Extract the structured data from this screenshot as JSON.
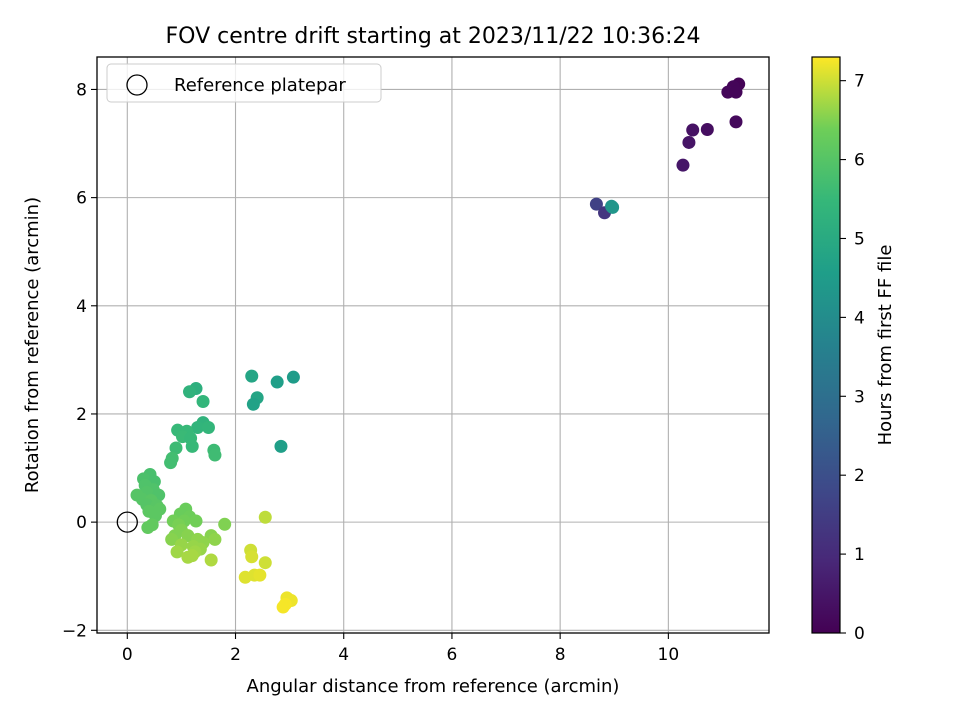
{
  "chart_data": {
    "type": "scatter",
    "title": "FOV centre drift starting at 2023/11/22 10:36:24",
    "xlabel": "Angular distance from reference (arcmin)",
    "ylabel": "Rotation from reference (arcmin)",
    "xlim": [
      -0.56,
      11.86
    ],
    "ylim": [
      -2.05,
      8.6
    ],
    "xticks": [
      0,
      2,
      4,
      6,
      8,
      10
    ],
    "yticks": [
      -2,
      0,
      2,
      4,
      6,
      8
    ],
    "grid": true,
    "legend": {
      "placement": "top-left",
      "entries": [
        "Reference platepar"
      ]
    },
    "reference_point": {
      "x": 0,
      "y": 0,
      "label": "Reference platepar"
    },
    "colorbar": {
      "label": "Hours from first FF file",
      "colormap": "viridis",
      "range": [
        0,
        7.3
      ],
      "ticks": [
        0,
        1,
        2,
        3,
        4,
        5,
        6,
        7
      ]
    },
    "series": [
      {
        "points": [
          {
            "x": 11.3,
            "y": 8.1,
            "c": 0.05
          },
          {
            "x": 11.2,
            "y": 8.05,
            "c": 0.1
          },
          {
            "x": 11.1,
            "y": 7.95,
            "c": 0.15
          },
          {
            "x": 11.25,
            "y": 7.95,
            "c": 0.1
          },
          {
            "x": 11.25,
            "y": 7.4,
            "c": 0.2
          },
          {
            "x": 10.72,
            "y": 7.26,
            "c": 0.3
          },
          {
            "x": 10.45,
            "y": 7.25,
            "c": 0.4
          },
          {
            "x": 10.38,
            "y": 7.02,
            "c": 0.45
          },
          {
            "x": 10.27,
            "y": 6.6,
            "c": 0.5
          },
          {
            "x": 8.67,
            "y": 5.88,
            "c": 1.6
          },
          {
            "x": 8.82,
            "y": 5.72,
            "c": 1.3
          },
          {
            "x": 8.95,
            "y": 5.84,
            "c": 4.2
          },
          {
            "x": 8.97,
            "y": 5.82,
            "c": 4.3
          },
          {
            "x": 2.3,
            "y": 2.7,
            "c": 4.8
          },
          {
            "x": 2.77,
            "y": 2.59,
            "c": 4.6
          },
          {
            "x": 3.07,
            "y": 2.68,
            "c": 4.5
          },
          {
            "x": 2.4,
            "y": 2.3,
            "c": 4.8
          },
          {
            "x": 2.33,
            "y": 2.18,
            "c": 4.7
          },
          {
            "x": 2.84,
            "y": 1.4,
            "c": 4.6
          },
          {
            "x": 1.27,
            "y": 2.47,
            "c": 5.2
          },
          {
            "x": 1.15,
            "y": 2.41,
            "c": 5.3
          },
          {
            "x": 1.4,
            "y": 2.23,
            "c": 5.4
          },
          {
            "x": 1.4,
            "y": 1.84,
            "c": 5.3
          },
          {
            "x": 1.3,
            "y": 1.75,
            "c": 5.35
          },
          {
            "x": 1.5,
            "y": 1.75,
            "c": 5.4
          },
          {
            "x": 0.93,
            "y": 1.7,
            "c": 5.5
          },
          {
            "x": 1.1,
            "y": 1.68,
            "c": 5.5
          },
          {
            "x": 1.02,
            "y": 1.58,
            "c": 5.55
          },
          {
            "x": 1.17,
            "y": 1.55,
            "c": 5.5
          },
          {
            "x": 1.2,
            "y": 1.4,
            "c": 5.5
          },
          {
            "x": 0.9,
            "y": 1.37,
            "c": 5.6
          },
          {
            "x": 1.6,
            "y": 1.33,
            "c": 5.6
          },
          {
            "x": 1.62,
            "y": 1.24,
            "c": 5.65
          },
          {
            "x": 0.83,
            "y": 1.18,
            "c": 5.7
          },
          {
            "x": 0.8,
            "y": 1.1,
            "c": 5.7
          },
          {
            "x": 0.42,
            "y": 0.88,
            "c": 5.8
          },
          {
            "x": 0.3,
            "y": 0.8,
            "c": 5.85
          },
          {
            "x": 0.5,
            "y": 0.75,
            "c": 5.8
          },
          {
            "x": 0.33,
            "y": 0.68,
            "c": 5.9
          },
          {
            "x": 0.48,
            "y": 0.6,
            "c": 5.9
          },
          {
            "x": 0.36,
            "y": 0.55,
            "c": 5.95
          },
          {
            "x": 0.18,
            "y": 0.5,
            "c": 6.0
          },
          {
            "x": 0.58,
            "y": 0.5,
            "c": 5.9
          },
          {
            "x": 0.28,
            "y": 0.42,
            "c": 6.0
          },
          {
            "x": 0.44,
            "y": 0.4,
            "c": 6.05
          },
          {
            "x": 0.36,
            "y": 0.32,
            "c": 6.0
          },
          {
            "x": 0.55,
            "y": 0.3,
            "c": 6.05
          },
          {
            "x": 0.6,
            "y": 0.24,
            "c": 6.1
          },
          {
            "x": 0.4,
            "y": 0.2,
            "c": 6.1
          },
          {
            "x": 0.52,
            "y": 0.12,
            "c": 6.1
          },
          {
            "x": 0.46,
            "y": -0.05,
            "c": 6.2
          },
          {
            "x": 0.38,
            "y": -0.1,
            "c": 6.2
          },
          {
            "x": 1.08,
            "y": 0.24,
            "c": 6.3
          },
          {
            "x": 0.98,
            "y": 0.15,
            "c": 6.3
          },
          {
            "x": 1.15,
            "y": 0.1,
            "c": 6.35
          },
          {
            "x": 0.85,
            "y": 0.02,
            "c": 6.4
          },
          {
            "x": 1.05,
            "y": 0.02,
            "c": 6.4
          },
          {
            "x": 1.27,
            "y": 0.02,
            "c": 6.4
          },
          {
            "x": 0.95,
            "y": -0.05,
            "c": 6.45
          },
          {
            "x": 1.8,
            "y": -0.04,
            "c": 6.5
          },
          {
            "x": 1.0,
            "y": -0.15,
            "c": 6.5
          },
          {
            "x": 0.88,
            "y": -0.25,
            "c": 6.5
          },
          {
            "x": 1.12,
            "y": -0.25,
            "c": 6.55
          },
          {
            "x": 1.55,
            "y": -0.25,
            "c": 6.55
          },
          {
            "x": 0.82,
            "y": -0.32,
            "c": 6.55
          },
          {
            "x": 1.3,
            "y": -0.32,
            "c": 6.6
          },
          {
            "x": 1.62,
            "y": -0.32,
            "c": 6.6
          },
          {
            "x": 1.4,
            "y": -0.38,
            "c": 6.6
          },
          {
            "x": 1.0,
            "y": -0.42,
            "c": 6.65
          },
          {
            "x": 1.22,
            "y": -0.45,
            "c": 6.65
          },
          {
            "x": 1.35,
            "y": -0.5,
            "c": 6.65
          },
          {
            "x": 0.92,
            "y": -0.55,
            "c": 6.7
          },
          {
            "x": 1.25,
            "y": -0.55,
            "c": 6.7
          },
          {
            "x": 1.12,
            "y": -0.65,
            "c": 6.75
          },
          {
            "x": 1.2,
            "y": -0.62,
            "c": 6.75
          },
          {
            "x": 1.55,
            "y": -0.7,
            "c": 6.8
          },
          {
            "x": 2.55,
            "y": 0.09,
            "c": 6.9
          },
          {
            "x": 2.28,
            "y": -0.52,
            "c": 7.0
          },
          {
            "x": 2.3,
            "y": -0.64,
            "c": 7.05
          },
          {
            "x": 2.55,
            "y": -0.75,
            "c": 7.0
          },
          {
            "x": 2.18,
            "y": -1.02,
            "c": 7.1
          },
          {
            "x": 2.35,
            "y": -0.98,
            "c": 7.1
          },
          {
            "x": 2.45,
            "y": -0.98,
            "c": 7.15
          },
          {
            "x": 2.95,
            "y": -1.4,
            "c": 7.2
          },
          {
            "x": 3.03,
            "y": -1.45,
            "c": 7.2
          },
          {
            "x": 2.92,
            "y": -1.52,
            "c": 7.25
          },
          {
            "x": 2.88,
            "y": -1.57,
            "c": 7.25
          }
        ]
      }
    ]
  }
}
